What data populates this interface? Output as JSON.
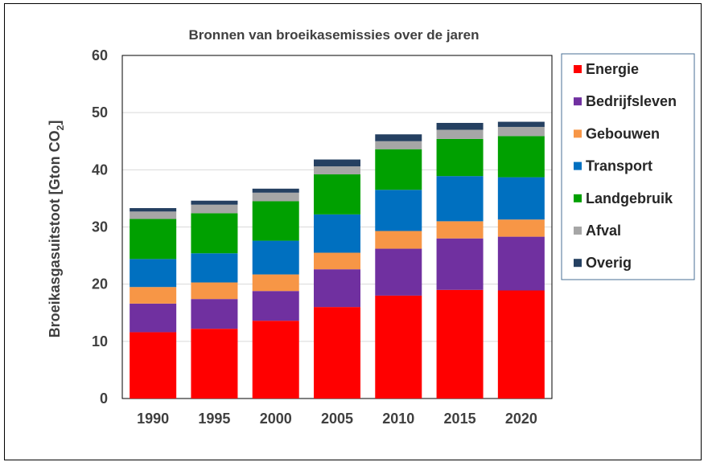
{
  "chart_data": {
    "type": "bar",
    "stacked": true,
    "title": "Bronnen van broeikasemissies over de jaren",
    "ylabel": "Broeikasgasuitstoot [Gton CO",
    "ylabel_subscript": "2",
    "ylabel_suffix": "]",
    "ylim": [
      0,
      60
    ],
    "yticks": [
      0,
      10,
      20,
      30,
      40,
      50,
      60
    ],
    "grid": true,
    "legend_position": "right",
    "categories": [
      "1990",
      "1995",
      "2000",
      "2005",
      "2010",
      "2015",
      "2020"
    ],
    "series": [
      {
        "name": "Energie",
        "color": "#ff0000",
        "values": [
          11.6,
          12.2,
          13.6,
          16.0,
          18.0,
          19.0,
          18.9
        ]
      },
      {
        "name": "Bedrijfsleven",
        "color": "#7030a0",
        "values": [
          5.0,
          5.2,
          5.2,
          6.6,
          8.2,
          9.0,
          9.4
        ]
      },
      {
        "name": "Gebouwen",
        "color": "#f79646",
        "values": [
          2.9,
          2.9,
          2.9,
          2.9,
          3.1,
          3.0,
          3.0
        ]
      },
      {
        "name": "Transport",
        "color": "#0070c0",
        "values": [
          4.9,
          5.1,
          5.9,
          6.7,
          7.2,
          7.9,
          7.4
        ]
      },
      {
        "name": "Landgebruik",
        "color": "#00a000",
        "values": [
          7.0,
          7.0,
          6.9,
          7.0,
          7.1,
          6.5,
          7.2
        ]
      },
      {
        "name": "Afval",
        "color": "#a6a6a6",
        "values": [
          1.3,
          1.5,
          1.5,
          1.4,
          1.4,
          1.6,
          1.6
        ]
      },
      {
        "name": "Overig",
        "color": "#254061",
        "values": [
          0.6,
          0.7,
          0.7,
          1.2,
          1.2,
          1.2,
          0.9
        ]
      }
    ]
  }
}
